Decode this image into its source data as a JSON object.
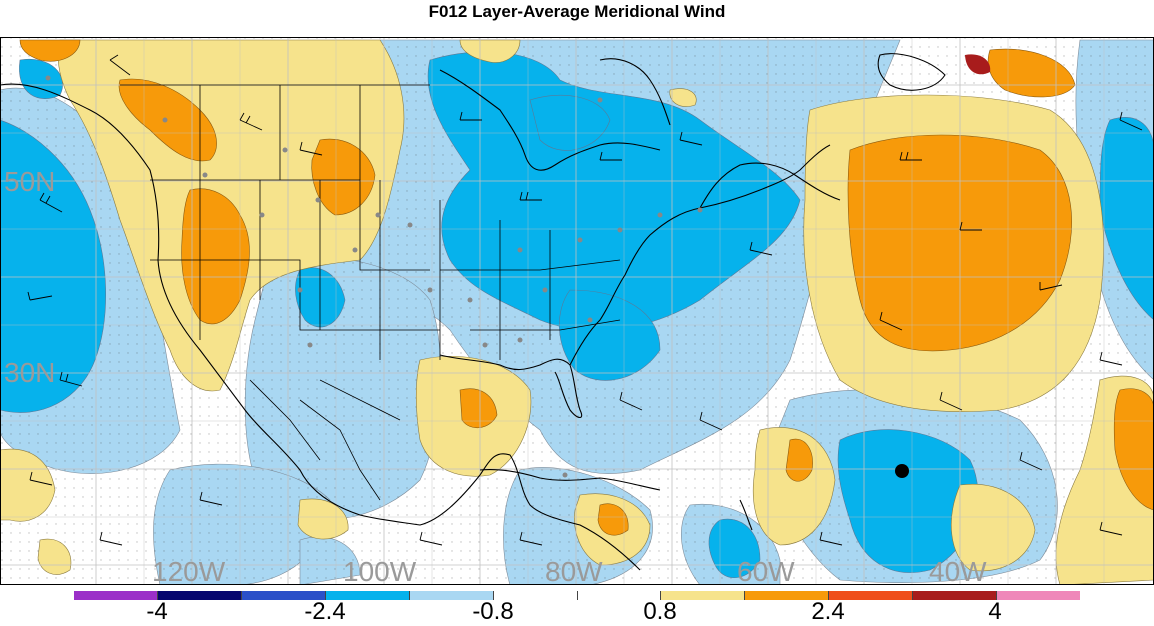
{
  "title": "F012 Layer-Average Meridional Wind",
  "lat_labels": [
    "50N",
    "30N"
  ],
  "lon_labels": [
    "120W",
    "100W",
    "80W",
    "60W",
    "40W"
  ],
  "colorbar": {
    "colors": [
      "#9b30c8",
      "#05056e",
      "#2b50c8",
      "#06b2ec",
      "#a9d7f2",
      "#ffffff",
      "#ffffff",
      "#f6e38c",
      "#f79a0a",
      "#ef4e1b",
      "#a81c1c",
      "#ef87b9"
    ],
    "tick_labels": [
      "-4",
      "-2.4",
      "-0.8",
      "0.8",
      "2.4",
      "4"
    ]
  },
  "palette": {
    "light_blue": "#a9d7f2",
    "mid_blue": "#06b2ec",
    "light_yellow": "#f6e38c",
    "orange": "#f79a0a",
    "grid": "#c0c0c0",
    "marker": "#000000"
  },
  "map_icons": [
    "wind-barb-icon",
    "station-dot-icon",
    "storm-center-icon"
  ]
}
